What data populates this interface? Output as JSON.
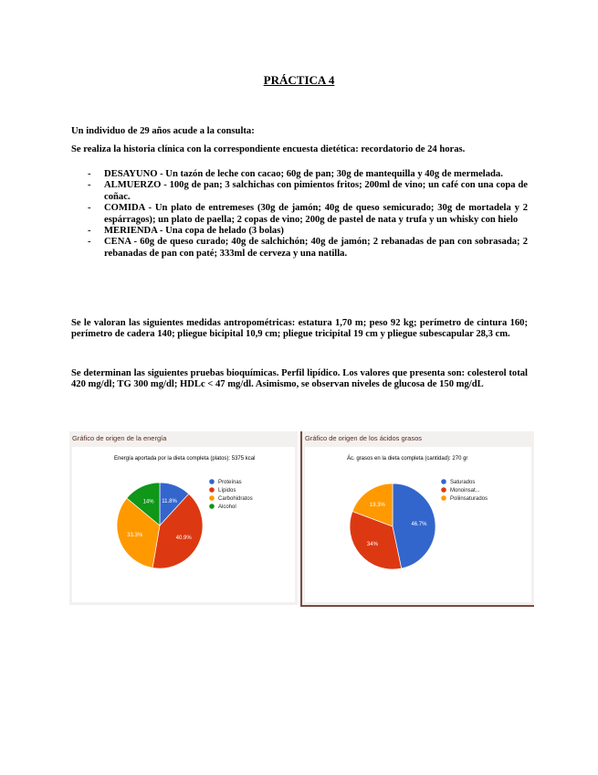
{
  "title": "PRÁCTICA 4",
  "intro": "Un individuo de 29 años acude a la consulta:",
  "history": "Se realiza la historia clínica con la correspondiente encuesta dietética: recordatorio de 24 horas.",
  "meals": [
    "DESAYUNO - Un tazón de leche con cacao; 60g de pan; 30g de mantequilla y 40g de mermelada.",
    "ALMUERZO - 100g de pan; 3 salchichas con pimientos fritos; 200ml de vino; un café con una copa de coñac.",
    "COMIDA - Un plato de entremeses (30g de jamón; 40g de queso semicurado; 30g de mortadela y 2 espárragos); un plato de paella; 2 copas de vino; 200g de pastel de nata y trufa y un whisky con hielo",
    "MERIENDA - Una copa de helado (3 bolas)",
    "CENA - 60g de queso curado; 40g de salchichón; 40g de jamón; 2 rebanadas de pan con sobrasada; 2 rebanadas de pan con paté; 333ml de cerveza y una natilla."
  ],
  "anthropometry": "Se le valoran las siguientes medidas antropométricas: estatura 1,70 m; peso 92 kg; perímetro de cintura 160; perímetro de cadera 140; pliegue bicipital 10,9 cm; pliegue tricipital 19 cm y pliegue subescapular 28,3 cm.",
  "biochem": "Se determinan las siguientes pruebas bioquímicas. Perfil lipídico. Los valores que presenta son: colesterol total 420 mg/dl; TG 300 mg/dl; HDLc < 47 mg/dl. Asimismo, se observan niveles de glucosa de 150 mg/dL",
  "chart_data": [
    {
      "type": "pie",
      "panel_title": "Gráfico de origen de la energía",
      "title": "Energía aportada por la dieta completa (platos): 5375 kcal",
      "categories": [
        "Proteínas",
        "Lípidos",
        "Carbohidratos",
        "Alcohol"
      ],
      "values": [
        11.8,
        40.9,
        33.3,
        14
      ],
      "labels": [
        "11.8%",
        "40.9%",
        "33.3%",
        "14%"
      ],
      "colors": [
        "#3366cc",
        "#dc3912",
        "#ff9900",
        "#109618"
      ],
      "legend": "right"
    },
    {
      "type": "pie",
      "panel_title": "Gráfico de origen de los ácidos grasos",
      "title": "Ác. grasos en la dieta completa (cantidad): 270 gr",
      "categories": [
        "Saturados",
        "Monoinsat...",
        "Poliinsaturados"
      ],
      "values": [
        46.7,
        34,
        19.3
      ],
      "labels": [
        "46.7%",
        "34%",
        "19.3%"
      ],
      "colors": [
        "#3366cc",
        "#dc3912",
        "#ff9900"
      ],
      "legend": "right"
    }
  ]
}
